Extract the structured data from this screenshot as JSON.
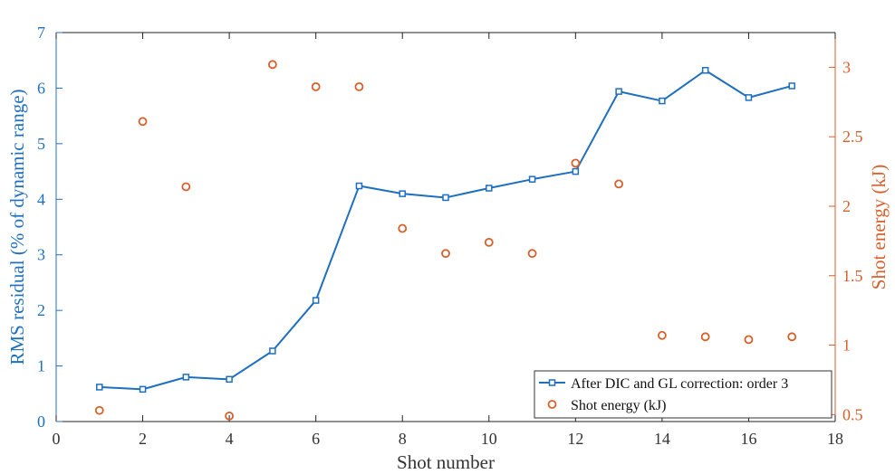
{
  "chart_data": {
    "type": "line",
    "xlabel": "Shot number",
    "ylabel_left": "RMS residual (% of dynamic range)",
    "ylabel_right": "Shot energy (kJ)",
    "xlim": [
      0,
      18
    ],
    "ylim_left": [
      0,
      7
    ],
    "ylim_right": [
      0.45,
      3.25
    ],
    "xticks": [
      0,
      2,
      4,
      6,
      8,
      10,
      12,
      14,
      16,
      18
    ],
    "yticks_left": [
      0,
      1,
      2,
      3,
      4,
      5,
      6,
      7
    ],
    "yticks_right": [
      0.5,
      1,
      1.5,
      2,
      2.5,
      3
    ],
    "xtick_labels": [
      "0",
      "2",
      "4",
      "6",
      "8",
      "10",
      "12",
      "14",
      "16",
      "18"
    ],
    "ytick_labels_left": [
      "0",
      "1",
      "2",
      "3",
      "4",
      "5",
      "6",
      "7"
    ],
    "ytick_labels_right": [
      "0.5",
      "1",
      "1.5",
      "2",
      "2.5",
      "3"
    ],
    "grid": false,
    "legend_position": "bottom-right",
    "series": [
      {
        "name": "After DIC and GL correction: order 3",
        "axis": "left",
        "style": "line-square",
        "color": "#1f6fbf",
        "x": [
          1,
          2,
          3,
          4,
          5,
          6,
          7,
          8,
          9,
          10,
          11,
          12,
          13,
          14,
          15,
          16,
          17
        ],
        "y": [
          0.62,
          0.58,
          0.8,
          0.76,
          1.27,
          2.18,
          4.24,
          4.1,
          4.03,
          4.2,
          4.36,
          4.5,
          5.94,
          5.77,
          6.32,
          5.83,
          6.04
        ]
      },
      {
        "name": "Shot energy (kJ)",
        "axis": "right",
        "style": "marker-circle",
        "color": "#d95f2b",
        "x": [
          1,
          2,
          3,
          4,
          5,
          6,
          7,
          8,
          9,
          10,
          11,
          12,
          13,
          14,
          15,
          16,
          17
        ],
        "y": [
          0.53,
          2.61,
          2.14,
          0.49,
          3.02,
          2.86,
          2.86,
          1.84,
          1.66,
          1.74,
          1.66,
          2.31,
          2.16,
          1.07,
          1.06,
          1.04,
          1.06
        ]
      }
    ]
  },
  "colors": {
    "left_axis": "#1f6fbf",
    "right_axis": "#d95f2b",
    "frame": "#222222"
  }
}
